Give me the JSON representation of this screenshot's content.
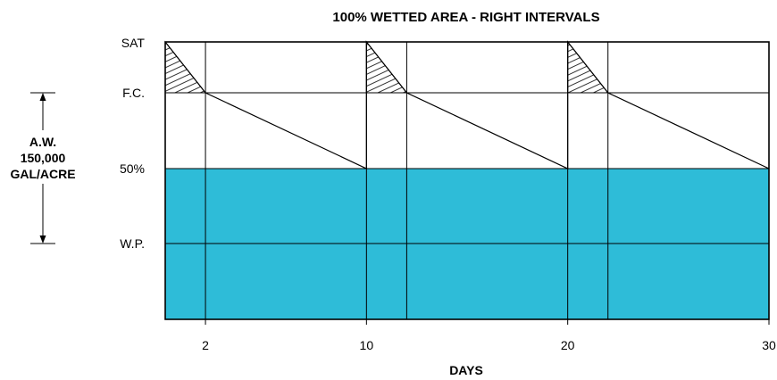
{
  "title": "100% WETTED AREA - RIGHT INTERVALS",
  "x_axis_label": "DAYS",
  "x_ticks": [
    "2",
    "10",
    "20",
    "30"
  ],
  "y_levels": [
    "SAT",
    "F.C.",
    "50%",
    "W.P."
  ],
  "aw_label": {
    "line1": "A.W.",
    "line2": "150,000",
    "line3": "GAL/ACRE"
  },
  "colors": {
    "fill": "#2ebcd8",
    "line": "#000000",
    "hatch": "#000000"
  },
  "chart_data": {
    "type": "line",
    "xlabel": "DAYS",
    "xlim": [
      0,
      30
    ],
    "x_ticks": [
      2,
      10,
      20,
      30
    ],
    "y_levels": [
      "W.P.",
      "50%",
      "F.C.",
      "SAT"
    ],
    "moisture_series": {
      "x": [
        0,
        2,
        10,
        10,
        12,
        20,
        20,
        22,
        30
      ],
      "y": [
        "SAT",
        "F.C.",
        "50%",
        "SAT",
        "F.C.",
        "50%",
        "SAT",
        "F.C.",
        "50%"
      ]
    },
    "irrigation_days": [
      0,
      10,
      20
    ],
    "drainage_end_days": [
      2,
      12,
      22
    ],
    "shaded_region": {
      "from": "bottom",
      "to": "50%"
    },
    "hatched_regions": "above F.C. during drainage after each irrigation",
    "available_water_span": [
      "F.C.",
      "W.P."
    ]
  }
}
